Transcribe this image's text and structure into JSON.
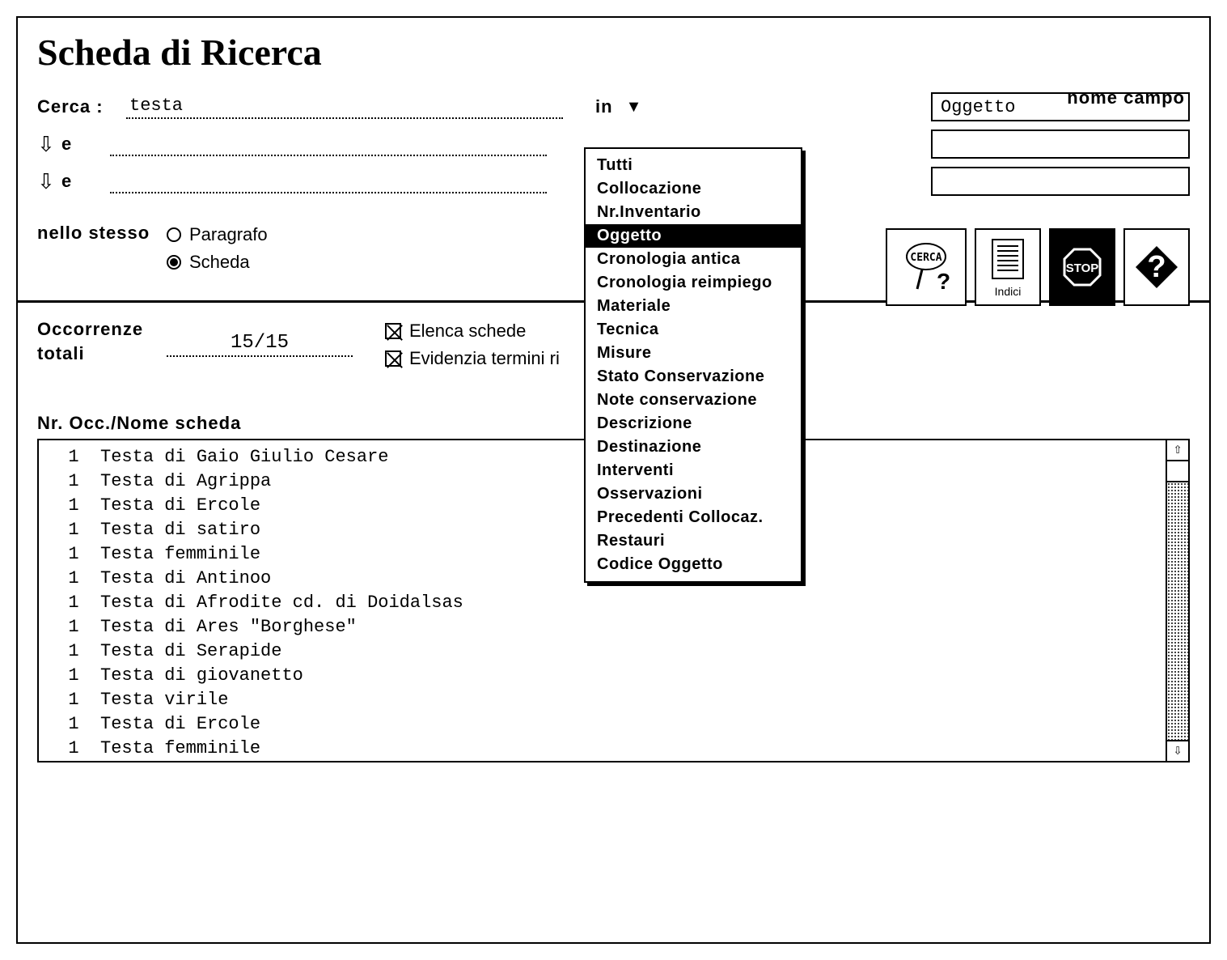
{
  "title": "Scheda di Ricerca",
  "labels": {
    "nome_campo": "nome campo",
    "cerca": "Cerca :",
    "in": "in",
    "e": "e",
    "nello_stesso": "nello stesso",
    "paragrafo": "Paragrafo",
    "scheda": "Scheda",
    "occorrenze": "Occorrenze",
    "totali": "totali",
    "elenca": "Elenca schede",
    "evidenzia": "Evidenzia termini ri",
    "results_header": "Nr. Occ./Nome scheda",
    "indici": "Indici"
  },
  "search": {
    "term1": "testa",
    "term2": "",
    "term3": "",
    "field1": "Oggetto",
    "field2": "",
    "field3": "",
    "scope_selected": "scheda",
    "occurrences": "15/15",
    "elenca_checked": true,
    "evidenzia_checked": true
  },
  "dropdown": {
    "selected": "Oggetto",
    "items": [
      "Tutti",
      "Collocazione",
      "Nr.Inventario",
      "Oggetto",
      "Cronologia antica",
      "Cronologia reimpiego",
      "Materiale",
      "Tecnica",
      "Misure",
      "Stato Conservazione",
      "Note conservazione",
      "Descrizione",
      "Destinazione",
      "Interventi",
      "Osservazioni",
      "Precedenti Collocaz.",
      "Restauri",
      "Codice Oggetto"
    ]
  },
  "results": [
    {
      "n": 1,
      "name": "Testa di Gaio Giulio Cesare"
    },
    {
      "n": 1,
      "name": "Testa di Agrippa"
    },
    {
      "n": 1,
      "name": "Testa di Ercole"
    },
    {
      "n": 1,
      "name": "Testa di satiro"
    },
    {
      "n": 1,
      "name": "Testa femminile"
    },
    {
      "n": 1,
      "name": "Testa di Antinoo"
    },
    {
      "n": 1,
      "name": "Testa di Afrodite cd. di Doidalsas"
    },
    {
      "n": 1,
      "name": "Testa di Ares \"Borghese\""
    },
    {
      "n": 1,
      "name": "Testa di Serapide"
    },
    {
      "n": 1,
      "name": "Testa di giovanetto"
    },
    {
      "n": 1,
      "name": "Testa virile"
    },
    {
      "n": 1,
      "name": "Testa di Ercole"
    },
    {
      "n": 1,
      "name": "Testa femminile"
    }
  ],
  "colors": {
    "bg": "#ffffff",
    "fg": "#000000"
  }
}
